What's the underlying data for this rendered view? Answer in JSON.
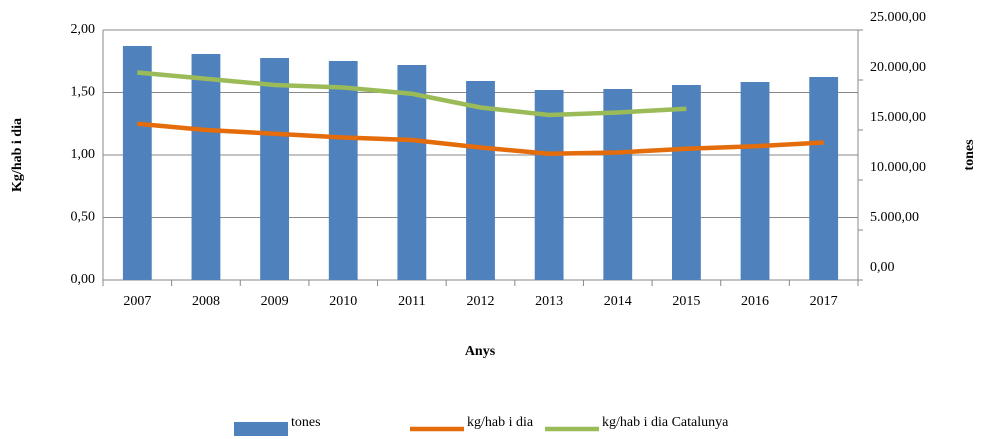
{
  "chart_data": {
    "type": "bar-line",
    "x_label": "Anys",
    "y_label": "Kg/hab i dia",
    "y2_label": "tones",
    "categories": [
      "2007",
      "2008",
      "2009",
      "2010",
      "2011",
      "2012",
      "2013",
      "2014",
      "2015",
      "2016",
      "2017"
    ],
    "series": [
      {
        "name": "tones",
        "type": "bar",
        "axis": "y2",
        "color": "#4f81bd",
        "values": [
          23400,
          22600,
          22200,
          21900,
          21500,
          19900,
          19000,
          19100,
          19500,
          19800,
          20300
        ]
      },
      {
        "name": "kg/hab i dia",
        "type": "line",
        "color": "#e46c0a",
        "values": [
          1.25,
          1.2,
          1.17,
          1.14,
          1.12,
          1.06,
          1.01,
          1.02,
          1.05,
          1.07,
          1.1
        ]
      },
      {
        "name": "kg/hab i dia Catalunya",
        "type": "line",
        "color": "#9bbb59",
        "values": [
          1.66,
          1.61,
          1.56,
          1.54,
          1.49,
          1.38,
          1.32,
          1.34,
          1.37,
          null,
          null
        ]
      }
    ],
    "ylim": [
      0,
      2
    ],
    "yticks": [
      {
        "value": 0,
        "label": "0,00"
      },
      {
        "value": 0.5,
        "label": "0,50"
      },
      {
        "value": 1,
        "label": "1,00"
      },
      {
        "value": 1.5,
        "label": "1,50"
      },
      {
        "value": 2,
        "label": "2,00"
      }
    ],
    "y2lim": [
      0,
      25000
    ],
    "y2ticks": [
      {
        "value": 0,
        "label": "0,00"
      },
      {
        "value": 5000,
        "label": "5.000,00"
      },
      {
        "value": 10000,
        "label": "10.000,00"
      },
      {
        "value": 15000,
        "label": "15.000,00"
      },
      {
        "value": 20000,
        "label": "20.000,00"
      },
      {
        "value": 25000,
        "label": "25.000,00"
      }
    ],
    "grid": true,
    "legend": "bottom"
  }
}
